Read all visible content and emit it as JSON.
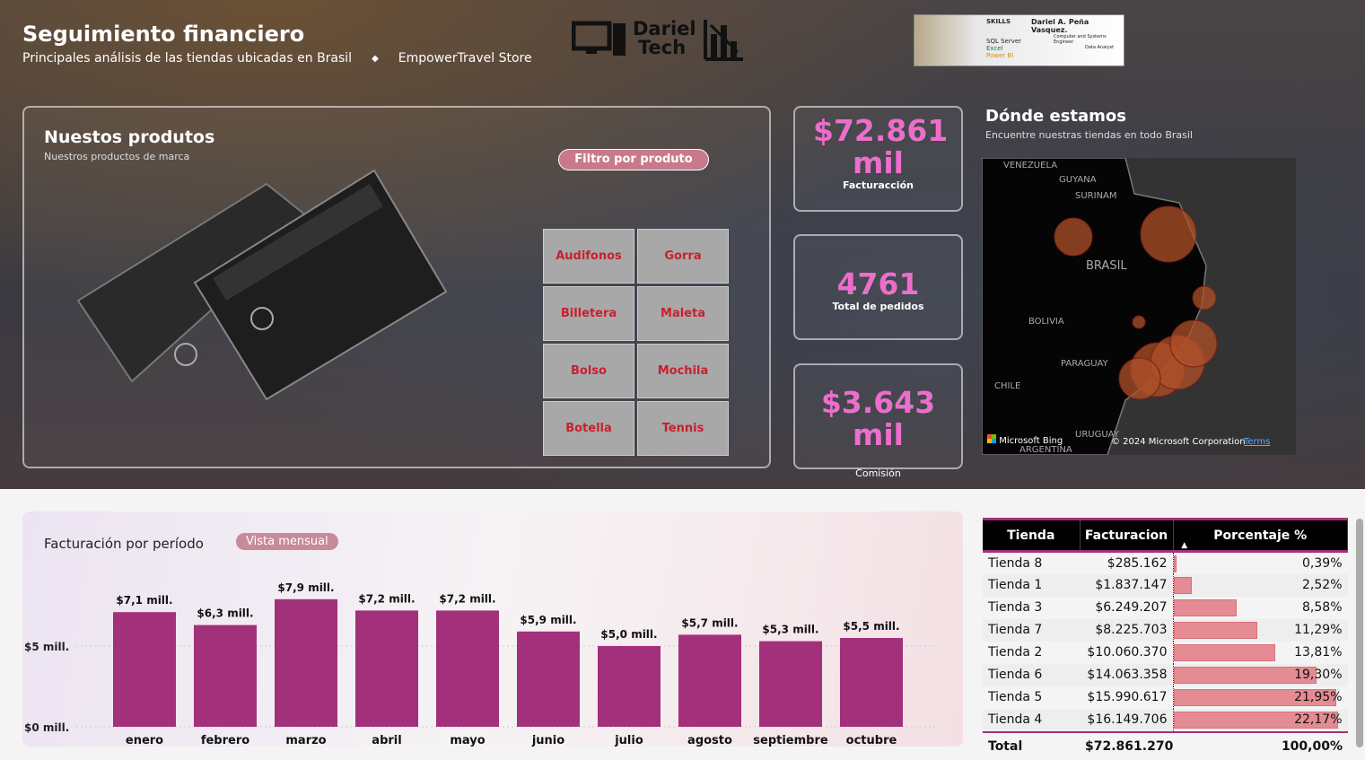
{
  "header": {
    "title": "Seguimiento financiero",
    "subtitle": "Principales análisis de las tiendas ubicadas en Brasil",
    "bullet": "◆",
    "store": "EmpowerTravel Store",
    "logo_line1": "Dariel",
    "logo_line2": "Tech"
  },
  "banner": {
    "skills": "SKILLS",
    "name": "Dariel A. Peña Vasquez.",
    "role1": "Computer and Systems Engineer",
    "role2": "Data Analyst",
    "tools": [
      "SQL Server",
      "Excel",
      "Power BI"
    ]
  },
  "products": {
    "title": "Nuestos produtos",
    "subtitle": "Nuestros productos de marca",
    "filter_label": "Filtro por produto",
    "items": [
      "Audifonos",
      "Gorra",
      "Billetera",
      "Maleta",
      "Bolso",
      "Mochila",
      "Botella",
      "Tennis"
    ]
  },
  "kpis": [
    {
      "value": "$72.861 mil",
      "label": "Facturacción"
    },
    {
      "value": "4761",
      "label": "Total de pedidos"
    },
    {
      "value": "$3.643 mil",
      "label": "Comisión"
    }
  ],
  "map": {
    "title": "Dónde estamos",
    "subtitle": "Encuentre nuestras tiendas en todo Brasil",
    "labels": [
      "VENEZUELA",
      "GUYANA",
      "SURINAM",
      "BRASIL",
      "BOLIVIA",
      "PARAGUAY",
      "CHILE",
      "URUGUAY",
      "ARGENTINA"
    ],
    "bing": "Microsoft Bing",
    "copyright": "© 2024 Microsoft Corporation",
    "terms": "Terms",
    "bubble_color": "#b0502a"
  },
  "chart_data": {
    "type": "bar",
    "title": "Facturación por período",
    "toggle": "Vista mensual",
    "categories": [
      "enero",
      "febrero",
      "marzo",
      "abril",
      "mayo",
      "junio",
      "julio",
      "agosto",
      "septiembre",
      "octubre"
    ],
    "values": [
      7.1,
      6.3,
      7.9,
      7.2,
      7.2,
      5.9,
      5.0,
      5.7,
      5.3,
      5.5
    ],
    "labels": [
      "$7,1 mill.",
      "$6,3 mill.",
      "$7,9 mill.",
      "$7,2 mill.",
      "$7,2 mill.",
      "$5,9 mill.",
      "$5,0 mill.",
      "$5,7 mill.",
      "$5,3 mill.",
      "$5,5 mill."
    ],
    "yticks": [
      "$0 mill.",
      "$5 mill."
    ],
    "ytick_values": [
      0,
      5
    ],
    "ylim": [
      0,
      8.5
    ],
    "color": "#a3307a"
  },
  "table": {
    "headers": [
      "Tienda",
      "Facturacion",
      "Porcentaje %"
    ],
    "rows": [
      [
        "Tienda 8",
        "$285.162",
        "0,39%",
        0.39
      ],
      [
        "Tienda 1",
        "$1.837.147",
        "2,52%",
        2.52
      ],
      [
        "Tienda 3",
        "$6.249.207",
        "8,58%",
        8.58
      ],
      [
        "Tienda 7",
        "$8.225.703",
        "11,29%",
        11.29
      ],
      [
        "Tienda 2",
        "$10.060.370",
        "13,81%",
        13.81
      ],
      [
        "Tienda 6",
        "$14.063.358",
        "19,30%",
        19.3
      ],
      [
        "Tienda 5",
        "$15.990.617",
        "21,95%",
        21.95
      ],
      [
        "Tienda 4",
        "$16.149.706",
        "22,17%",
        22.17
      ]
    ],
    "total": [
      "Total",
      "$72.861.270",
      "100,00%"
    ]
  }
}
